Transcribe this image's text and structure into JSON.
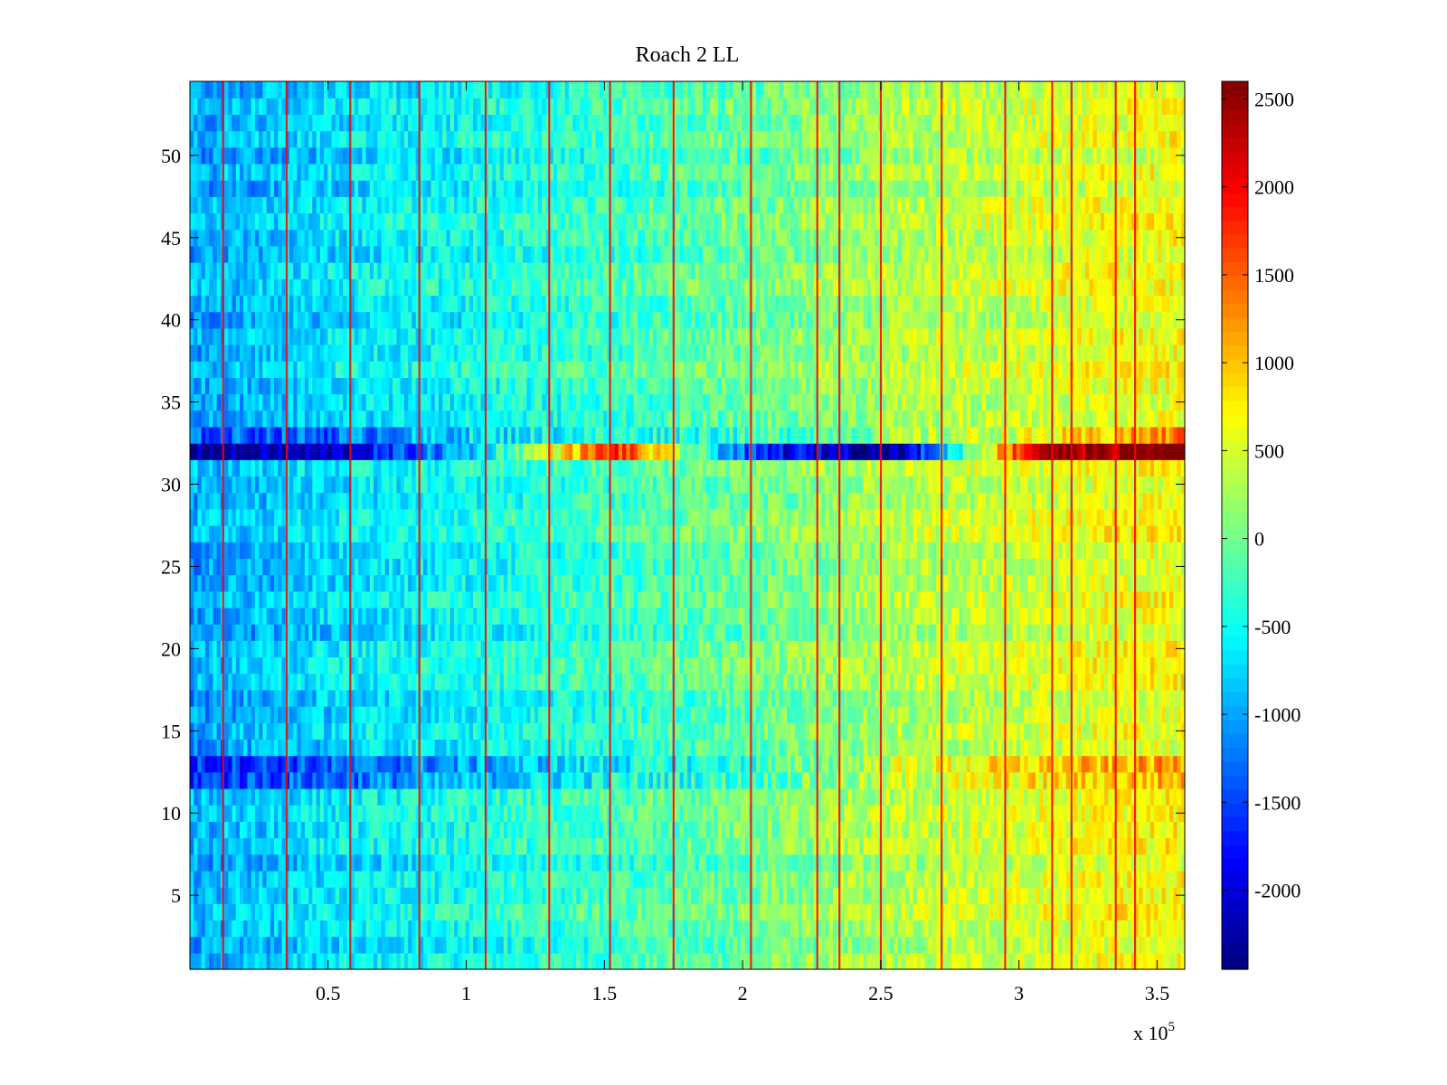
{
  "chart_data": {
    "type": "heatmap",
    "title": "Roach 2 LL",
    "xlabel": "",
    "ylabel": "",
    "x_exponent_label": "x 10",
    "x_exponent_power": "5",
    "xlim": [
      0,
      3.6
    ],
    "ylim": [
      0.5,
      54.5
    ],
    "x_ticks": [
      0.5,
      1,
      1.5,
      2,
      2.5,
      3,
      3.5
    ],
    "x_tick_labels": [
      "0.5",
      "1",
      "1.5",
      "2",
      "2.5",
      "3",
      "3.5"
    ],
    "y_ticks": [
      5,
      10,
      15,
      20,
      25,
      30,
      35,
      40,
      45,
      50
    ],
    "y_tick_labels": [
      "5",
      "10",
      "15",
      "20",
      "25",
      "30",
      "35",
      "40",
      "45",
      "50"
    ],
    "rows": 54,
    "colormap": "jet",
    "clim": [
      -2450,
      2600
    ],
    "colorbar_ticks": [
      2500,
      2000,
      1500,
      1000,
      500,
      0,
      -500,
      -1000,
      -1500,
      -2000
    ],
    "colorbar_tick_labels": [
      "2500",
      "2000",
      "1500",
      "1000",
      "500",
      "0",
      "-500",
      "-1000",
      "-1500",
      "-2000"
    ],
    "column_trend": {
      "x": [
        0,
        0.3,
        0.6,
        0.9,
        1.2,
        1.5,
        1.8,
        2.1,
        2.4,
        2.7,
        3.0,
        3.3,
        3.6
      ],
      "mean_value": [
        -1000,
        -850,
        -650,
        -550,
        -420,
        -300,
        -150,
        0,
        200,
        350,
        450,
        600,
        650
      ]
    },
    "anomalous_rows": [
      {
        "row": 32,
        "description_values": [
          -2300,
          -2200,
          -800,
          1800,
          -1700,
          -2300,
          2500,
          2600
        ]
      },
      {
        "row": 33,
        "description_values": [
          -1400,
          -1300,
          -700,
          -400,
          -300,
          200,
          600,
          1400
        ]
      },
      {
        "row": 13,
        "description_values": [
          -1600,
          -1400,
          -1000,
          -600,
          -300,
          500,
          900,
          1200
        ]
      },
      {
        "row": 12,
        "description_values": [
          -1500,
          -1300,
          -900,
          -500,
          -200,
          400,
          800,
          1100
        ]
      }
    ],
    "vertical_stripe_x": [
      0.12,
      0.35,
      0.58,
      0.83,
      1.07,
      1.3,
      1.52,
      1.75,
      2.03,
      2.27,
      2.35,
      2.5,
      2.72,
      2.95,
      3.12,
      3.19,
      3.35,
      3.42
    ],
    "vertical_stripe_value": 2000
  }
}
